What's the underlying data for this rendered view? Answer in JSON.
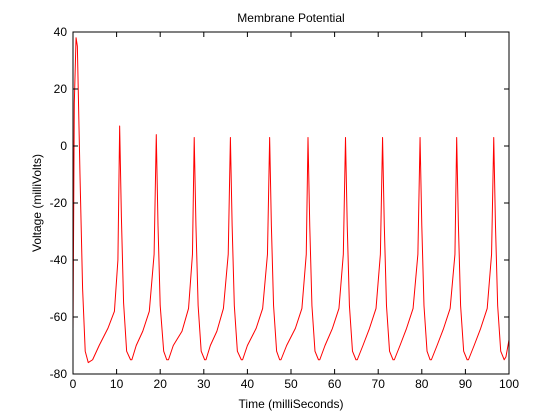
{
  "chart_data": {
    "type": "line",
    "title": "Membrane Potential",
    "xlabel": "Time (milliSeconds)",
    "ylabel": "Voltage (milliVolts)",
    "xlim": [
      0,
      100
    ],
    "ylim": [
      -80,
      40
    ],
    "xticks": [
      0,
      10,
      20,
      30,
      40,
      50,
      60,
      70,
      80,
      90,
      100
    ],
    "yticks": [
      -80,
      -60,
      -40,
      -20,
      0,
      20,
      40
    ],
    "grid": false,
    "legend": "none",
    "series": [
      {
        "name": "Membrane Potential",
        "color": "#ff0000",
        "x": [
          0,
          0.3,
          0.7,
          1.0,
          1.6,
          2.2,
          2.8,
          3.5,
          4.5,
          6,
          8,
          9.5,
          10.3,
          10.7,
          11.1,
          11.6,
          12.3,
          13.2,
          13.5,
          14.5,
          16,
          17.5,
          18.6,
          19.1,
          19.5,
          20.0,
          20.8,
          21.5,
          21.9,
          23,
          25,
          26.5,
          27.4,
          27.8,
          28.2,
          28.7,
          29.4,
          30.2,
          30.5,
          31.5,
          33,
          34.5,
          35.6,
          36.1,
          36.5,
          37.0,
          37.7,
          38.6,
          38.9,
          40,
          42,
          43.5,
          44.6,
          45.1,
          45.5,
          46.0,
          46.7,
          47.4,
          47.7,
          49,
          51,
          52.5,
          53.5,
          53.9,
          54.3,
          54.8,
          55.5,
          56.3,
          56.6,
          57.8,
          59.5,
          61,
          62.0,
          62.5,
          62.9,
          63.4,
          64.1,
          64.9,
          65.2,
          66.5,
          68,
          69.5,
          70.5,
          71.0,
          71.4,
          71.9,
          72.6,
          73.4,
          73.7,
          75,
          76.5,
          78,
          79.1,
          79.6,
          80.0,
          80.5,
          81.2,
          81.9,
          82.2,
          83.5,
          85,
          86.5,
          87.6,
          88.0,
          88.4,
          88.9,
          89.6,
          90.4,
          90.7,
          92,
          93.5,
          95,
          96.0,
          96.5,
          96.9,
          97.4,
          98.1,
          98.9,
          99.3,
          100
        ],
        "y": [
          -65,
          15,
          38,
          35,
          -10,
          -50,
          -72,
          -76,
          -75,
          -70,
          -64,
          -58,
          -40,
          7,
          -25,
          -55,
          -72,
          -75,
          -75,
          -70,
          -65,
          -58,
          -38,
          4,
          -28,
          -56,
          -72,
          -75,
          -75,
          -70,
          -65,
          -57,
          -38,
          3,
          -28,
          -56,
          -72,
          -75,
          -75,
          -70,
          -65,
          -57,
          -38,
          3,
          -28,
          -56,
          -72,
          -75,
          -75,
          -70,
          -64,
          -57,
          -38,
          3,
          -28,
          -56,
          -72,
          -75,
          -75,
          -70,
          -64,
          -57,
          -38,
          3,
          -28,
          -56,
          -72,
          -75,
          -75,
          -70,
          -64,
          -57,
          -38,
          3,
          -28,
          -56,
          -72,
          -75,
          -75,
          -70,
          -64,
          -57,
          -38,
          3,
          -28,
          -56,
          -72,
          -75,
          -75,
          -70,
          -64,
          -57,
          -38,
          3,
          -28,
          -56,
          -72,
          -75,
          -75,
          -70,
          -64,
          -57,
          -38,
          3,
          -28,
          -56,
          -72,
          -75,
          -75,
          -70,
          -64,
          -57,
          -38,
          3,
          -28,
          -56,
          -72,
          -75,
          -74,
          -68
        ]
      }
    ]
  }
}
